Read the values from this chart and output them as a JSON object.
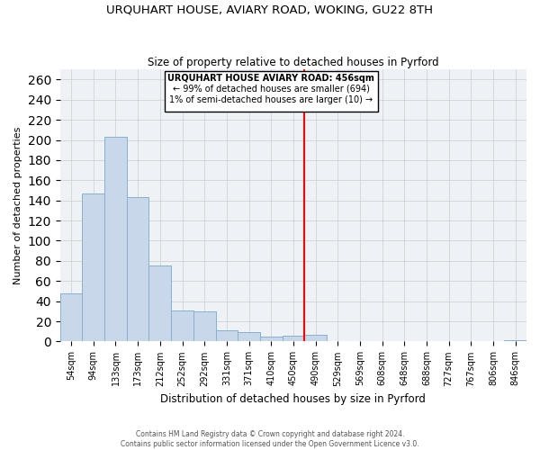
{
  "title": "URQUHART HOUSE, AVIARY ROAD, WOKING, GU22 8TH",
  "subtitle": "Size of property relative to detached houses in Pyrford",
  "xlabel": "Distribution of detached houses by size in Pyrford",
  "ylabel": "Number of detached properties",
  "bar_labels": [
    "54sqm",
    "94sqm",
    "133sqm",
    "173sqm",
    "212sqm",
    "252sqm",
    "292sqm",
    "331sqm",
    "371sqm",
    "410sqm",
    "450sqm",
    "490sqm",
    "529sqm",
    "569sqm",
    "608sqm",
    "648sqm",
    "688sqm",
    "727sqm",
    "767sqm",
    "806sqm",
    "846sqm"
  ],
  "bar_values": [
    48,
    147,
    203,
    143,
    75,
    31,
    30,
    11,
    9,
    5,
    6,
    7,
    0,
    0,
    0,
    0,
    0,
    0,
    0,
    0,
    1
  ],
  "bar_color": "#c8d8ea",
  "bar_edge_color": "#8ab0cc",
  "vline_color": "red",
  "annotation_title": "URQUHART HOUSE AVIARY ROAD: 456sqm",
  "annotation_line1": "← 99% of detached houses are smaller (694)",
  "annotation_line2": "1% of semi-detached houses are larger (10) →",
  "ylim": [
    0,
    270
  ],
  "yticks": [
    0,
    20,
    40,
    60,
    80,
    100,
    120,
    140,
    160,
    180,
    200,
    220,
    240,
    260
  ],
  "footer_line1": "Contains HM Land Registry data © Crown copyright and database right 2024.",
  "footer_line2": "Contains public sector information licensed under the Open Government Licence v3.0.",
  "background_color": "#eef2f7",
  "grid_color": "#cccccc"
}
